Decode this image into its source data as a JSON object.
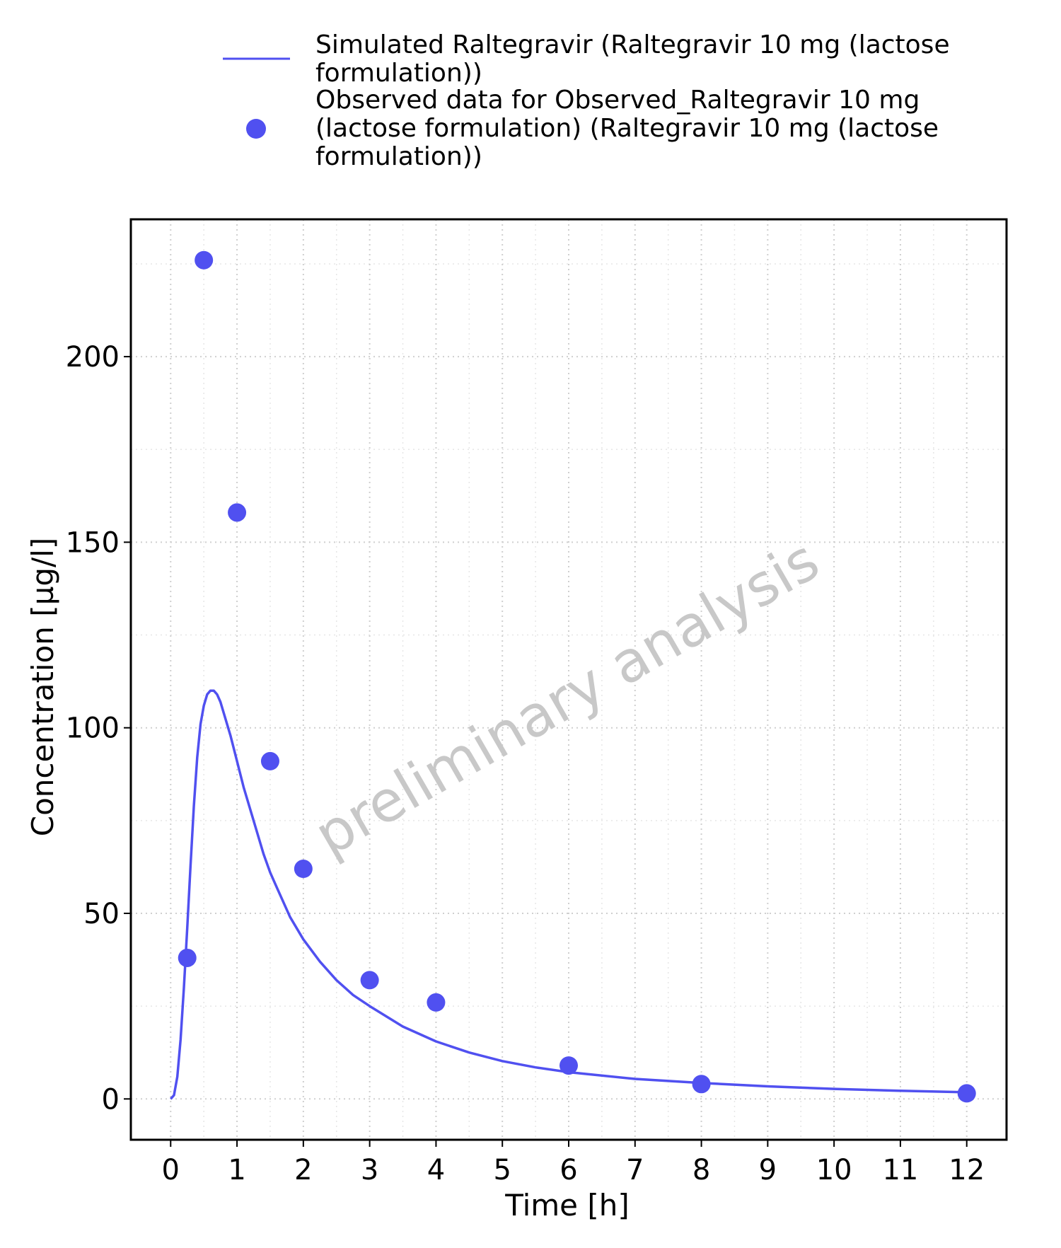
{
  "chart_data": {
    "type": "line",
    "xlabel": "Time [h]",
    "ylabel": "Concentration [µg/l]",
    "xlim": [
      -0.6,
      12.6
    ],
    "ylim": [
      -11,
      237
    ],
    "x_ticks": [
      0,
      1,
      2,
      3,
      4,
      5,
      6,
      7,
      8,
      9,
      10,
      11,
      12
    ],
    "y_ticks": [
      0,
      50,
      100,
      150,
      200
    ],
    "x_minor_grid": [
      0.5,
      1.5,
      2.5,
      3.5,
      4.5,
      5.5,
      6.5,
      7.5,
      8.5,
      9.5,
      10.5,
      11.5
    ],
    "y_minor_grid": [
      25,
      75,
      125,
      175,
      225
    ],
    "grid": true,
    "legend_position": "top",
    "watermark": "preliminary analysis",
    "series": [
      {
        "name": "Simulated Raltegravir (Raltegravir 10 mg (lactose formulation))",
        "type": "line",
        "color": "#5050f0",
        "x": [
          0,
          0.05,
          0.1,
          0.15,
          0.2,
          0.25,
          0.3,
          0.35,
          0.4,
          0.45,
          0.5,
          0.55,
          0.6,
          0.65,
          0.7,
          0.75,
          0.8,
          0.85,
          0.9,
          1.0,
          1.1,
          1.2,
          1.3,
          1.4,
          1.5,
          1.6,
          1.8,
          2.0,
          2.25,
          2.5,
          2.75,
          3.0,
          3.5,
          4.0,
          4.5,
          5.0,
          5.5,
          6.0,
          7.0,
          8.0,
          9.0,
          10.0,
          11.0,
          12.0
        ],
        "y": [
          0,
          1,
          6,
          16,
          30,
          46,
          63,
          79,
          92,
          101,
          106,
          109,
          110,
          110,
          109,
          107,
          104,
          101,
          98,
          91,
          84,
          78,
          72,
          66,
          61,
          57,
          49,
          43,
          37,
          32,
          28,
          25,
          19.5,
          15.5,
          12.5,
          10.2,
          8.5,
          7.2,
          5.4,
          4.3,
          3.4,
          2.7,
          2.2,
          1.8
        ]
      },
      {
        "name": "Observed data for Observed_Raltegravir 10 mg (lactose formulation) (Raltegravir 10 mg (lactose formulation))",
        "type": "scatter",
        "color": "#5050f0",
        "x": [
          0.25,
          0.5,
          1.0,
          1.5,
          2.0,
          3.0,
          4.0,
          6.0,
          8.0,
          12.0
        ],
        "y": [
          38,
          226,
          158,
          91,
          62,
          32,
          26,
          9,
          4,
          1.5
        ]
      }
    ]
  },
  "legend": {
    "line_label_1": "Simulated Raltegravir (Raltegravir 10 mg (lactose",
    "line_label_2": "formulation))",
    "obs_label_1": "Observed data for Observed_Raltegravir 10 mg",
    "obs_label_2": "(lactose formulation) (Raltegravir 10 mg (lactose",
    "obs_label_3": "formulation))"
  }
}
